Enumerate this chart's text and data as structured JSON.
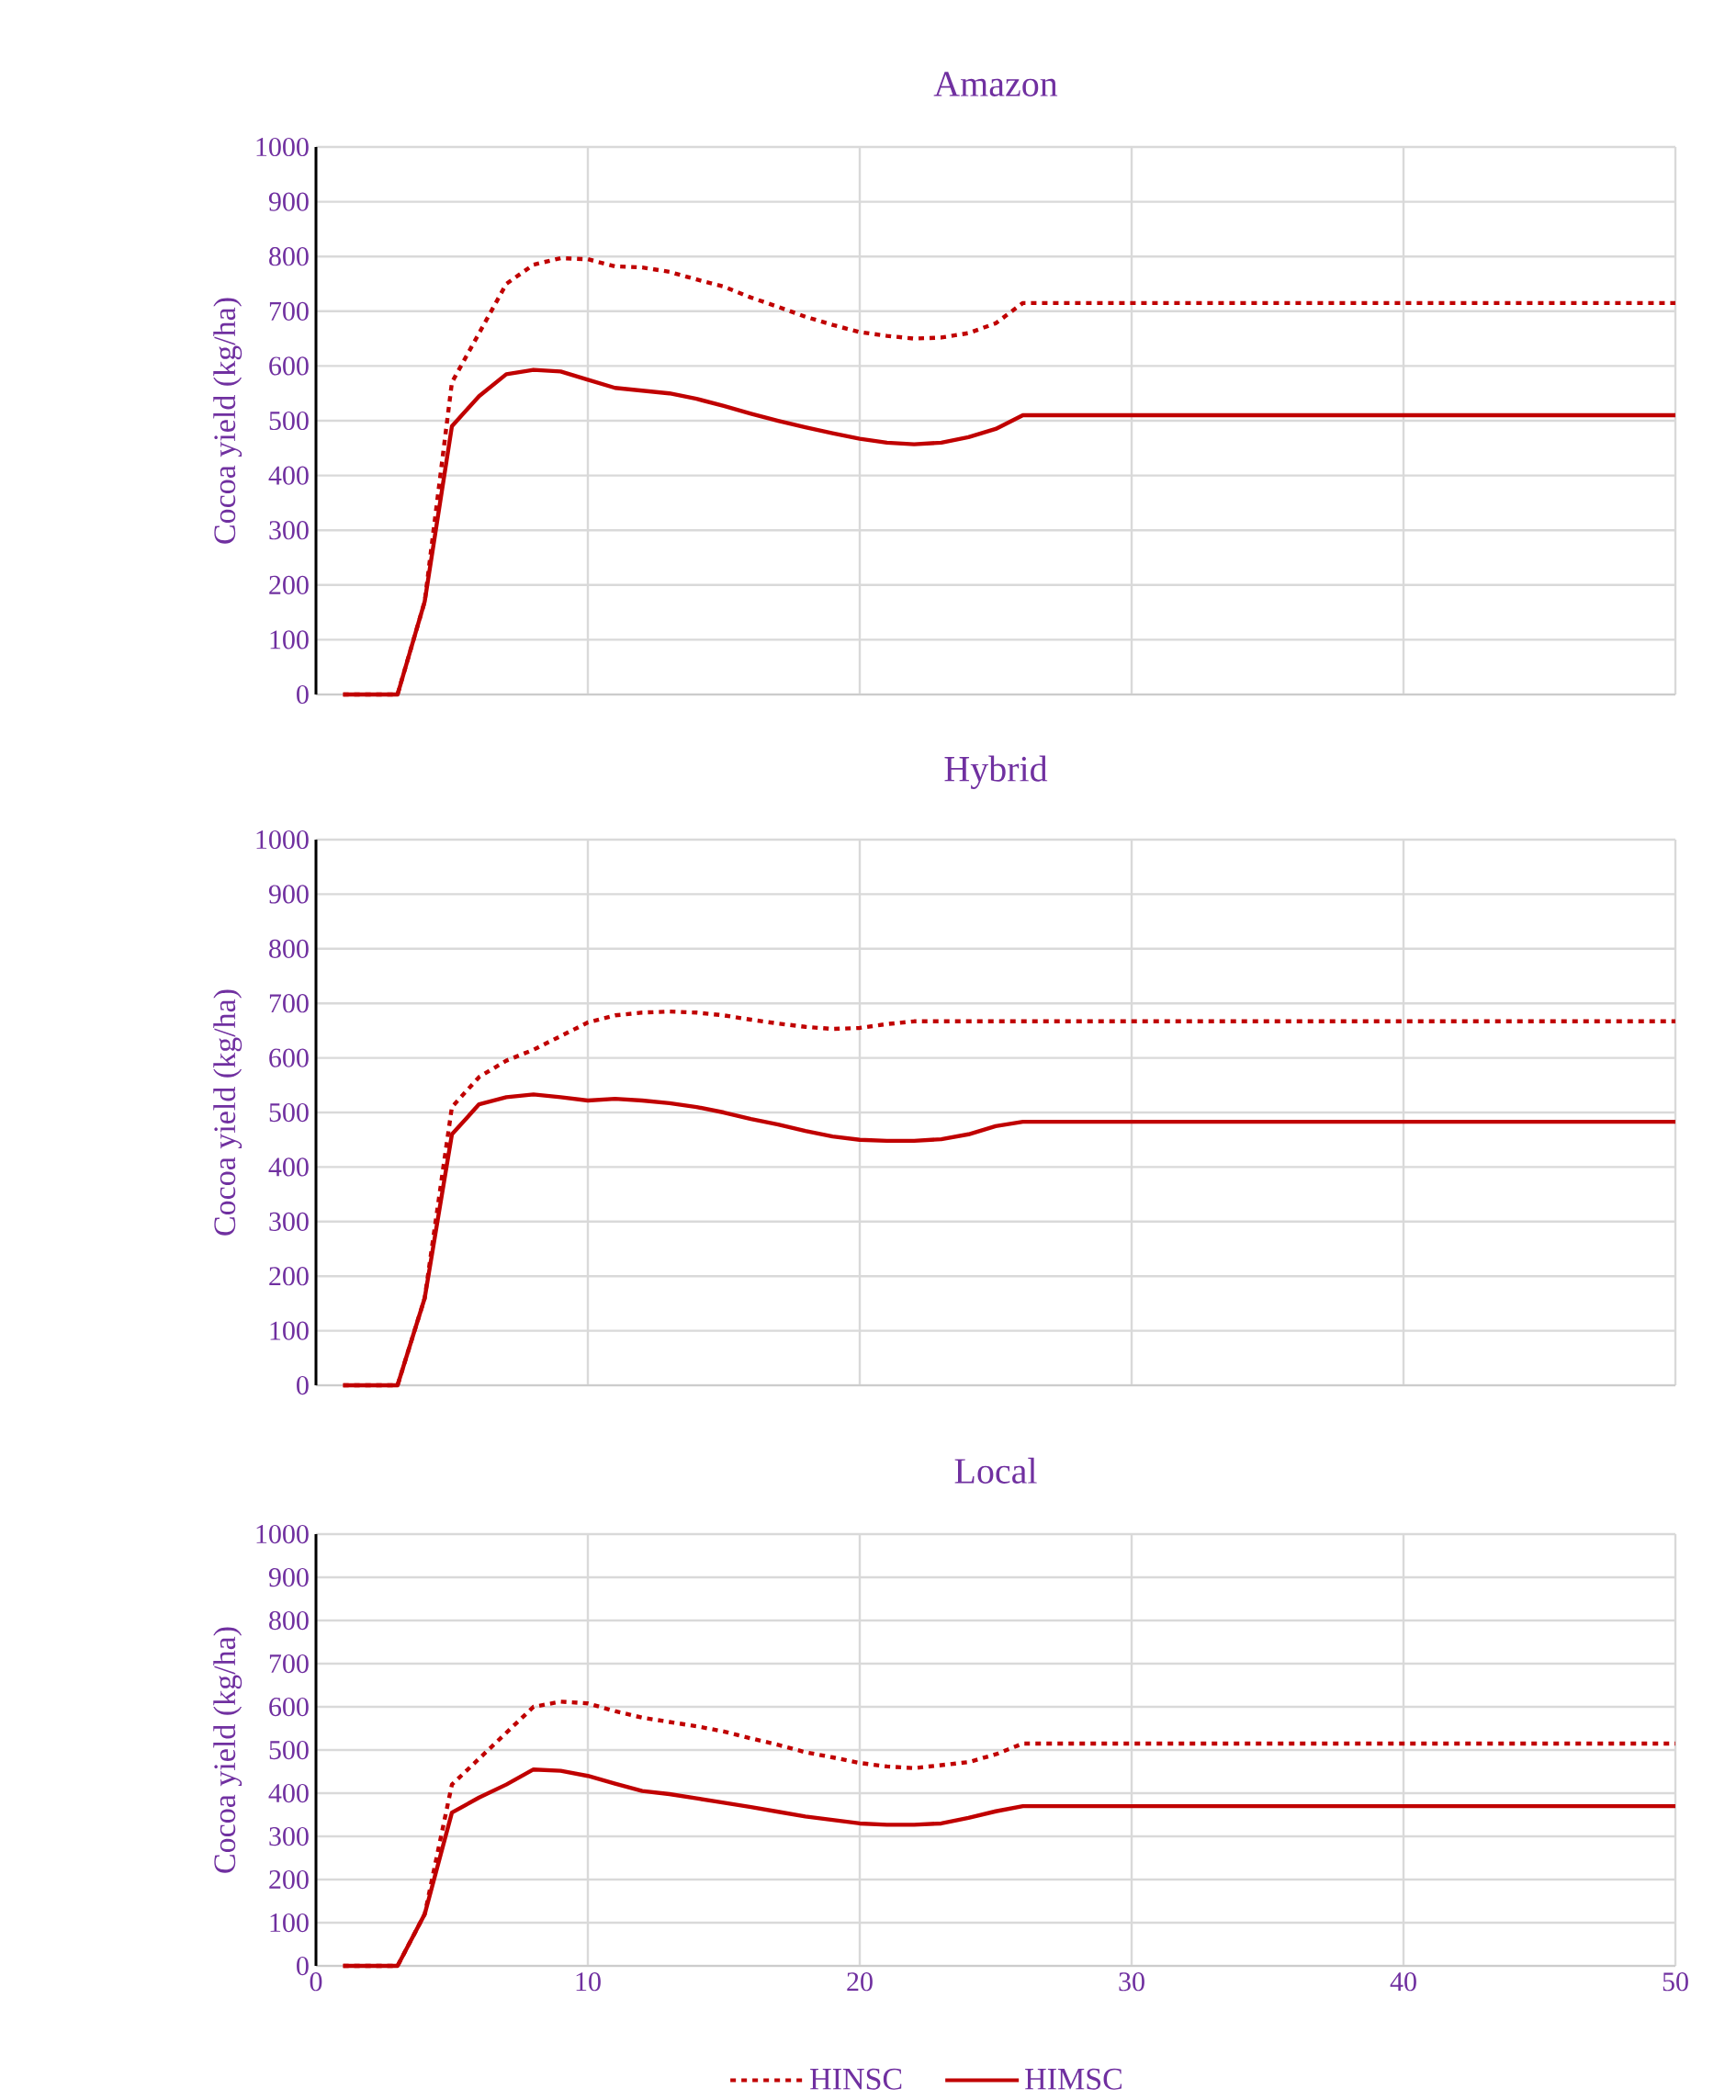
{
  "chart_data": [
    {
      "type": "line",
      "title": "Amazon",
      "ylabel": "Cocoa yield (kg/ha)",
      "x": [
        1,
        2,
        3,
        4,
        5,
        6,
        7,
        8,
        9,
        10,
        11,
        12,
        13,
        14,
        15,
        16,
        17,
        18,
        19,
        20,
        21,
        22,
        23,
        24,
        25,
        26,
        50
      ],
      "xlim": [
        0,
        50
      ],
      "xticks": [
        0,
        10,
        20,
        30,
        40,
        50
      ],
      "ylim": [
        0,
        1000
      ],
      "yticks": [
        0,
        100,
        200,
        300,
        400,
        500,
        600,
        700,
        800,
        900,
        1000
      ],
      "grid": true,
      "tick_labels": "y",
      "series": [
        {
          "color": "#c00000",
          "line_style": "dashed",
          "values": [
            0,
            0,
            0,
            170,
            570,
            660,
            750,
            785,
            797,
            795,
            782,
            780,
            772,
            758,
            745,
            725,
            708,
            690,
            675,
            662,
            655,
            650,
            652,
            660,
            678,
            715,
            715
          ]
        },
        {
          "color": "#c00000",
          "line_style": "solid",
          "values": [
            0,
            0,
            0,
            170,
            490,
            545,
            585,
            593,
            590,
            575,
            560,
            555,
            550,
            540,
            527,
            513,
            500,
            488,
            477,
            467,
            460,
            457,
            460,
            470,
            485,
            510,
            510
          ]
        }
      ]
    },
    {
      "type": "line",
      "title": "Hybrid",
      "ylabel": "Cocoa yield (kg/ha)",
      "x": [
        1,
        2,
        3,
        4,
        5,
        6,
        7,
        8,
        9,
        10,
        11,
        12,
        13,
        14,
        15,
        16,
        17,
        18,
        19,
        20,
        21,
        22,
        23,
        24,
        25,
        26,
        50
      ],
      "xlim": [
        0,
        50
      ],
      "xticks": [
        0,
        10,
        20,
        30,
        40,
        50
      ],
      "ylim": [
        0,
        1000
      ],
      "yticks": [
        0,
        100,
        200,
        300,
        400,
        500,
        600,
        700,
        800,
        900,
        1000
      ],
      "grid": true,
      "tick_labels": "y",
      "series": [
        {
          "color": "#c00000",
          "line_style": "dashed",
          "values": [
            0,
            0,
            0,
            160,
            510,
            565,
            595,
            615,
            640,
            665,
            678,
            683,
            685,
            683,
            678,
            670,
            663,
            657,
            653,
            655,
            662,
            667,
            667,
            667,
            667,
            667,
            667
          ]
        },
        {
          "color": "#c00000",
          "line_style": "solid",
          "values": [
            0,
            0,
            0,
            160,
            460,
            515,
            528,
            533,
            528,
            522,
            525,
            522,
            517,
            510,
            500,
            488,
            478,
            466,
            456,
            450,
            448,
            448,
            451,
            460,
            475,
            483,
            483
          ]
        }
      ]
    },
    {
      "type": "line",
      "title": "Local",
      "ylabel": "Cocoa yield (kg/ha)",
      "x": [
        1,
        2,
        3,
        4,
        5,
        6,
        7,
        8,
        9,
        10,
        11,
        12,
        13,
        14,
        15,
        16,
        17,
        18,
        19,
        20,
        21,
        22,
        23,
        24,
        25,
        26,
        50
      ],
      "xlim": [
        0,
        50
      ],
      "xticks": [
        0,
        10,
        20,
        30,
        40,
        50
      ],
      "ylim": [
        0,
        1000
      ],
      "yticks": [
        0,
        100,
        200,
        300,
        400,
        500,
        600,
        700,
        800,
        900,
        1000
      ],
      "grid": true,
      "legend": "bottom",
      "series": [
        {
          "name": "HINSC",
          "color": "#c00000",
          "line_style": "dashed",
          "values": [
            0,
            0,
            0,
            120,
            420,
            480,
            540,
            600,
            612,
            608,
            590,
            575,
            565,
            555,
            543,
            527,
            512,
            495,
            483,
            470,
            462,
            458,
            465,
            472,
            490,
            515,
            515
          ]
        },
        {
          "name": "HIMSC",
          "color": "#c00000",
          "line_style": "solid",
          "values": [
            0,
            0,
            0,
            120,
            355,
            390,
            420,
            455,
            452,
            440,
            422,
            405,
            398,
            388,
            378,
            368,
            357,
            346,
            338,
            330,
            327,
            327,
            330,
            343,
            358,
            370,
            370
          ]
        }
      ]
    }
  ]
}
